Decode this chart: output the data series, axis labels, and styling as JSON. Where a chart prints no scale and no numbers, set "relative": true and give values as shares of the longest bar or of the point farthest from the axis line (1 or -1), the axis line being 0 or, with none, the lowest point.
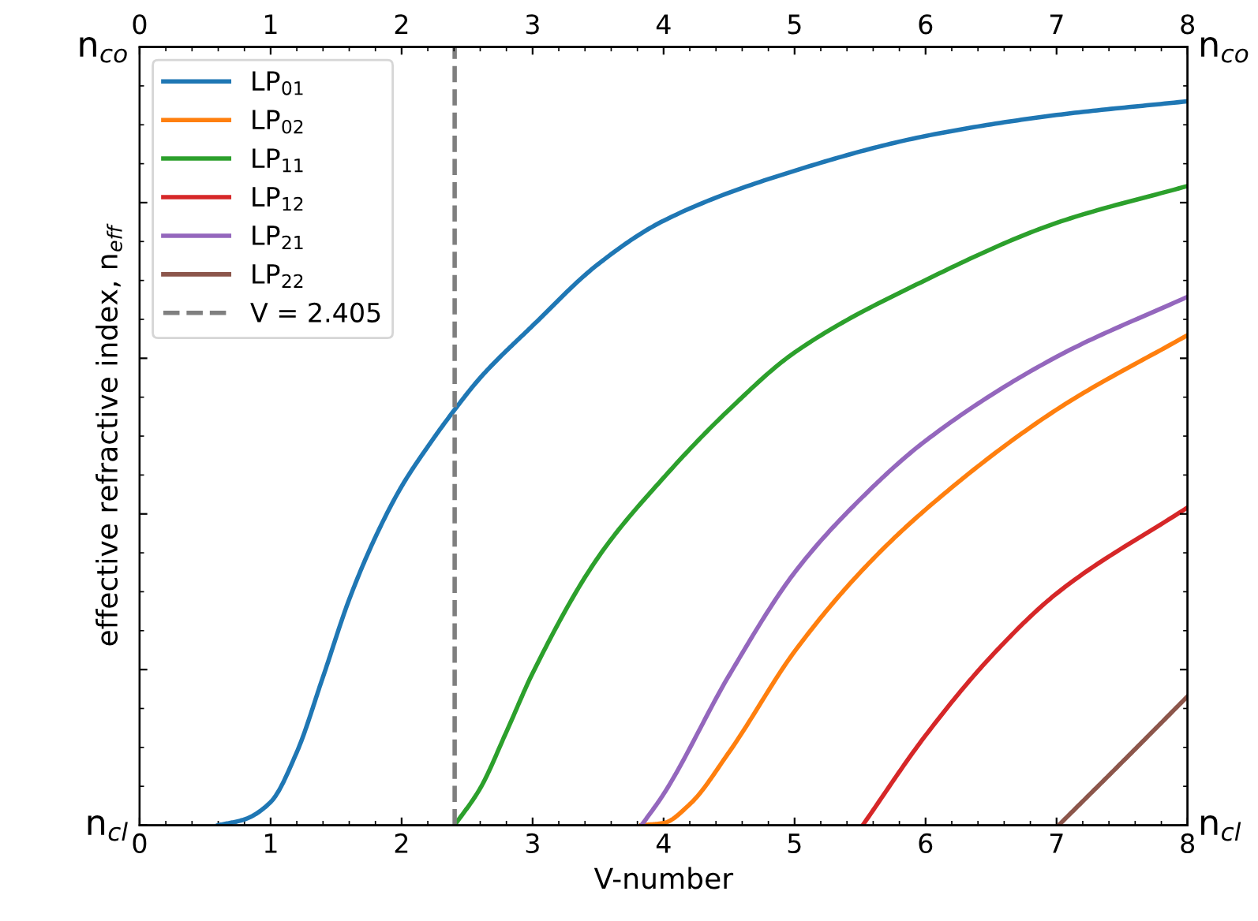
{
  "chart_data": {
    "type": "line",
    "xlabel": "V-number",
    "ylabel": "effective refractive index, n$_{eff}$",
    "xlim": [
      0,
      8
    ],
    "xticks": [
      0,
      1,
      2,
      3,
      4,
      5,
      6,
      7,
      8
    ],
    "x2lim": [
      0,
      8
    ],
    "x2ticks": [
      0,
      1,
      2,
      3,
      4,
      5,
      6,
      7,
      8
    ],
    "relative": true,
    "annotations": [
      "n$_{co}$",
      "n$_{cl}$",
      "n$_{co}$",
      "n$_{cl}$"
    ],
    "grid": false,
    "legend": "top left",
    "line_style": "solid",
    "marker": "none",
    "series": [
      {
        "name": "LP$_{01}$",
        "color": "#1f77b4",
        "x": [
          0.6,
          0.8,
          1.0,
          1.2,
          1.4,
          1.6,
          1.8,
          2.0,
          2.2,
          2.405,
          2.6,
          3.0,
          3.5,
          4.0,
          5.0,
          6.0,
          7.0,
          8.0
        ],
        "values": [
          0,
          0.008,
          0.032,
          0.101,
          0.205,
          0.312,
          0.398,
          0.468,
          0.523,
          0.574,
          0.618,
          0.69,
          0.775,
          0.835,
          0.904,
          0.952,
          0.981,
          1
        ]
      },
      {
        "name": "LP$_{02}$",
        "color": "#ff7f0e",
        "x": [
          3.832,
          4.0,
          4.2,
          4.5,
          5.0,
          5.5,
          6.0,
          7.0,
          8.0
        ],
        "values": [
          0,
          0.003,
          0.029,
          0.101,
          0.24,
          0.349,
          0.436,
          0.574,
          0.677
        ]
      },
      {
        "name": "LP$_{11}$",
        "color": "#2ca02c",
        "x": [
          2.405,
          2.6,
          2.8,
          3.0,
          3.5,
          4.0,
          4.5,
          5.0,
          6.0,
          7.0,
          8.0
        ],
        "values": [
          0,
          0.051,
          0.129,
          0.21,
          0.37,
          0.48,
          0.574,
          0.653,
          0.753,
          0.832,
          0.883
        ]
      },
      {
        "name": "LP$_{12}$",
        "color": "#d62728",
        "x": [
          5.52,
          6.0,
          6.5,
          7.0,
          8.0
        ],
        "values": [
          0,
          0.124,
          0.233,
          0.32,
          0.439
        ]
      },
      {
        "name": "LP$_{21}$",
        "color": "#9467bd",
        "x": [
          3.832,
          4.0,
          4.5,
          5.0,
          5.5,
          6.0,
          7.0,
          8.0
        ],
        "values": [
          0,
          0.043,
          0.207,
          0.349,
          0.45,
          0.531,
          0.647,
          0.73
        ]
      },
      {
        "name": "LP$_{22}$",
        "color": "#8c564b",
        "x": [
          7.016,
          7.5,
          8.0
        ],
        "values": [
          0,
          0.087,
          0.178
        ]
      }
    ],
    "ref_lines": [
      {
        "axis": "x",
        "value": 2.405,
        "label": "V = 2.405",
        "color": "#7f7f7f",
        "line_style": "dashed"
      }
    ]
  }
}
